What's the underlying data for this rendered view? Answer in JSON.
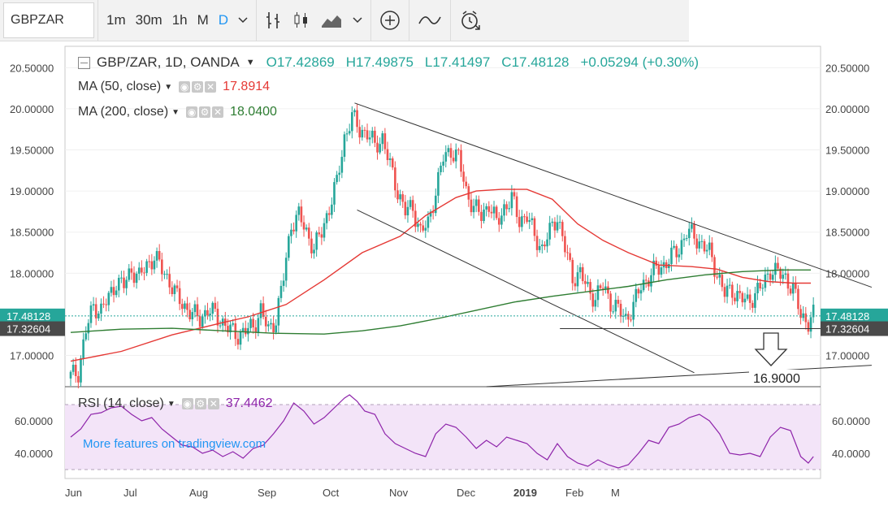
{
  "toolbar": {
    "symbol": "GBPZAR",
    "intervals": [
      "1m",
      "30m",
      "1h",
      "M",
      "D"
    ],
    "active_interval": "D",
    "icons": [
      "chevron-down-icon",
      "bar-chart-icon",
      "candles-icon",
      "area-chart-icon",
      "chevron-down-icon",
      "add-compare-icon",
      "indicators-icon",
      "alert-clock-icon"
    ]
  },
  "header": {
    "title": "GBP/ZAR, 1D, OANDA",
    "open": "O17.42869",
    "high": "H17.49875",
    "low": "L17.41497",
    "close": "C17.48128",
    "change": "+0.05294 (+0.30%)"
  },
  "indicators": {
    "ma50": {
      "label": "MA (50, close)",
      "value": "17.8914",
      "color": "#e53935"
    },
    "ma200": {
      "label": "MA (200, close)",
      "value": "18.0400",
      "color": "#2e7d32"
    },
    "rsi": {
      "label": "RSI (14, close)",
      "value": "37.4462",
      "color": "#8e24aa"
    }
  },
  "promo": "More features on tradingview.com",
  "annotation": "16.9000",
  "price_labels": {
    "last": "17.48128",
    "line": "17.32604"
  },
  "colors": {
    "up": "#26a69a",
    "down": "#ef5350",
    "rsi_band": "#f3e4f8",
    "last_price": "#26a69a",
    "line_label": "#4a4a4a"
  },
  "chart_data": {
    "type": "candlestick",
    "x_labels": [
      "Jun",
      "Jul",
      "Aug",
      "Sep",
      "Oct",
      "Nov",
      "Dec",
      "2019",
      "Feb",
      "M"
    ],
    "y_ticks": [
      "20.50000",
      "20.00000",
      "19.50000",
      "19.00000",
      "18.50000",
      "18.00000",
      "17.00000"
    ],
    "ylim": [
      16.62,
      20.76
    ],
    "rsi_ticks": [
      "60.0000",
      "40.0000"
    ],
    "rsi_ylim": [
      25,
      80
    ],
    "rsi_band": [
      30,
      70
    ],
    "close_path": [
      [
        0,
        16.75
      ],
      [
        3,
        16.8
      ],
      [
        6,
        17.3
      ],
      [
        9,
        17.6
      ],
      [
        12,
        17.55
      ],
      [
        15,
        17.7
      ],
      [
        18,
        17.9
      ],
      [
        21,
        17.85
      ],
      [
        24,
        18.05
      ],
      [
        27,
        17.95
      ],
      [
        30,
        18.1
      ],
      [
        33,
        18.2
      ],
      [
        36,
        18.05
      ],
      [
        39,
        17.9
      ],
      [
        42,
        17.7
      ],
      [
        45,
        17.6
      ],
      [
        48,
        17.5
      ],
      [
        51,
        17.45
      ],
      [
        54,
        17.55
      ],
      [
        57,
        17.5
      ],
      [
        60,
        17.4
      ],
      [
        63,
        17.3
      ],
      [
        66,
        17.25
      ],
      [
        69,
        17.3
      ],
      [
        72,
        17.35
      ],
      [
        75,
        17.55
      ],
      [
        78,
        17.3
      ],
      [
        81,
        17.45
      ],
      [
        84,
        17.95
      ],
      [
        87,
        18.6
      ],
      [
        90,
        18.7
      ],
      [
        93,
        18.5
      ],
      [
        96,
        18.3
      ],
      [
        99,
        18.5
      ],
      [
        102,
        18.8
      ],
      [
        105,
        19.1
      ],
      [
        108,
        19.65
      ],
      [
        111,
        19.9
      ],
      [
        114,
        19.75
      ],
      [
        117,
        19.7
      ],
      [
        120,
        19.55
      ],
      [
        123,
        19.65
      ],
      [
        126,
        19.3
      ],
      [
        129,
        19.0
      ],
      [
        132,
        18.75
      ],
      [
        135,
        18.8
      ],
      [
        138,
        18.5
      ],
      [
        141,
        18.6
      ],
      [
        144,
        19.0
      ],
      [
        147,
        19.4
      ],
      [
        150,
        19.5
      ],
      [
        153,
        19.4
      ],
      [
        156,
        19.0
      ],
      [
        159,
        18.8
      ],
      [
        162,
        18.7
      ],
      [
        165,
        18.85
      ],
      [
        168,
        18.6
      ],
      [
        171,
        18.8
      ],
      [
        174,
        18.9
      ],
      [
        177,
        18.65
      ],
      [
        180,
        18.7
      ],
      [
        183,
        18.45
      ],
      [
        186,
        18.3
      ],
      [
        189,
        18.5
      ],
      [
        192,
        18.7
      ],
      [
        195,
        18.3
      ],
      [
        198,
        17.95
      ],
      [
        201,
        18.0
      ],
      [
        204,
        17.8
      ],
      [
        207,
        17.7
      ],
      [
        210,
        17.85
      ],
      [
        213,
        17.65
      ],
      [
        216,
        17.55
      ],
      [
        219,
        17.45
      ],
      [
        222,
        17.6
      ],
      [
        225,
        17.85
      ],
      [
        228,
        17.95
      ],
      [
        231,
        18.05
      ],
      [
        234,
        18.1
      ],
      [
        237,
        18.2
      ],
      [
        240,
        18.3
      ],
      [
        243,
        18.5
      ],
      [
        246,
        18.45
      ],
      [
        249,
        18.35
      ],
      [
        252,
        18.25
      ],
      [
        255,
        18.0
      ],
      [
        258,
        17.75
      ],
      [
        261,
        17.8
      ],
      [
        264,
        17.7
      ],
      [
        267,
        17.65
      ],
      [
        270,
        17.75
      ],
      [
        273,
        17.85
      ],
      [
        276,
        18.05
      ],
      [
        279,
        18.0
      ],
      [
        282,
        17.95
      ],
      [
        285,
        17.8
      ],
      [
        288,
        17.5
      ],
      [
        291,
        17.4
      ],
      [
        293,
        17.48
      ]
    ],
    "series": [
      {
        "name": "MA (50, close)",
        "points": [
          [
            0,
            16.93
          ],
          [
            20,
            17.05
          ],
          [
            40,
            17.25
          ],
          [
            60,
            17.4
          ],
          [
            70,
            17.47
          ],
          [
            85,
            17.62
          ],
          [
            100,
            17.92
          ],
          [
            115,
            18.25
          ],
          [
            130,
            18.45
          ],
          [
            140,
            18.7
          ],
          [
            152,
            18.92
          ],
          [
            160,
            19.0
          ],
          [
            170,
            19.02
          ],
          [
            180,
            19.02
          ],
          [
            190,
            18.9
          ],
          [
            200,
            18.6
          ],
          [
            210,
            18.4
          ],
          [
            220,
            18.25
          ],
          [
            232,
            18.1
          ],
          [
            245,
            18.08
          ],
          [
            255,
            18.05
          ],
          [
            265,
            17.95
          ],
          [
            275,
            17.9
          ],
          [
            285,
            17.88
          ],
          [
            292,
            17.88
          ]
        ]
      },
      {
        "name": "MA (200, close)",
        "points": [
          [
            0,
            17.28
          ],
          [
            20,
            17.32
          ],
          [
            40,
            17.33
          ],
          [
            60,
            17.3
          ],
          [
            80,
            17.27
          ],
          [
            100,
            17.26
          ],
          [
            115,
            17.3
          ],
          [
            130,
            17.36
          ],
          [
            145,
            17.45
          ],
          [
            160,
            17.55
          ],
          [
            175,
            17.65
          ],
          [
            190,
            17.72
          ],
          [
            205,
            17.78
          ],
          [
            220,
            17.84
          ],
          [
            235,
            17.92
          ],
          [
            250,
            17.98
          ],
          [
            265,
            18.02
          ],
          [
            280,
            18.04
          ],
          [
            292,
            18.04
          ]
        ]
      }
    ],
    "rsi": [
      [
        0,
        50
      ],
      [
        4,
        55
      ],
      [
        8,
        64
      ],
      [
        12,
        65
      ],
      [
        16,
        68
      ],
      [
        20,
        69
      ],
      [
        24,
        64
      ],
      [
        28,
        60
      ],
      [
        32,
        62
      ],
      [
        36,
        55
      ],
      [
        40,
        50
      ],
      [
        44,
        45
      ],
      [
        48,
        44
      ],
      [
        52,
        40
      ],
      [
        56,
        42
      ],
      [
        60,
        38
      ],
      [
        64,
        41
      ],
      [
        68,
        37
      ],
      [
        72,
        43
      ],
      [
        76,
        45
      ],
      [
        80,
        52
      ],
      [
        84,
        60
      ],
      [
        88,
        71
      ],
      [
        92,
        66
      ],
      [
        96,
        58
      ],
      [
        100,
        62
      ],
      [
        104,
        68
      ],
      [
        108,
        74
      ],
      [
        110,
        76
      ],
      [
        113,
        72
      ],
      [
        116,
        66
      ],
      [
        120,
        64
      ],
      [
        124,
        52
      ],
      [
        128,
        46
      ],
      [
        132,
        43
      ],
      [
        136,
        40
      ],
      [
        140,
        38
      ],
      [
        144,
        52
      ],
      [
        148,
        58
      ],
      [
        152,
        56
      ],
      [
        156,
        50
      ],
      [
        160,
        43
      ],
      [
        164,
        48
      ],
      [
        168,
        44
      ],
      [
        172,
        50
      ],
      [
        176,
        48
      ],
      [
        180,
        46
      ],
      [
        184,
        40
      ],
      [
        188,
        36
      ],
      [
        192,
        46
      ],
      [
        196,
        38
      ],
      [
        200,
        34
      ],
      [
        204,
        32
      ],
      [
        208,
        36
      ],
      [
        212,
        33
      ],
      [
        216,
        31
      ],
      [
        220,
        33
      ],
      [
        224,
        40
      ],
      [
        228,
        48
      ],
      [
        232,
        46
      ],
      [
        236,
        56
      ],
      [
        240,
        58
      ],
      [
        244,
        62
      ],
      [
        248,
        64
      ],
      [
        252,
        60
      ],
      [
        256,
        52
      ],
      [
        260,
        40
      ],
      [
        264,
        39
      ],
      [
        268,
        40
      ],
      [
        272,
        38
      ],
      [
        276,
        50
      ],
      [
        280,
        56
      ],
      [
        284,
        54
      ],
      [
        288,
        38
      ],
      [
        291,
        34
      ],
      [
        293,
        38
      ]
    ],
    "trendlines": [
      {
        "from": [
          112,
          20.07
        ],
        "to": [
          316,
          17.83
        ]
      },
      {
        "from": [
          113,
          18.77
        ],
        "to": [
          246,
          16.79
        ]
      },
      {
        "from": [
          164,
          16.62
        ],
        "to": [
          316,
          16.88
        ]
      }
    ],
    "horizontal_line": 17.326
  }
}
